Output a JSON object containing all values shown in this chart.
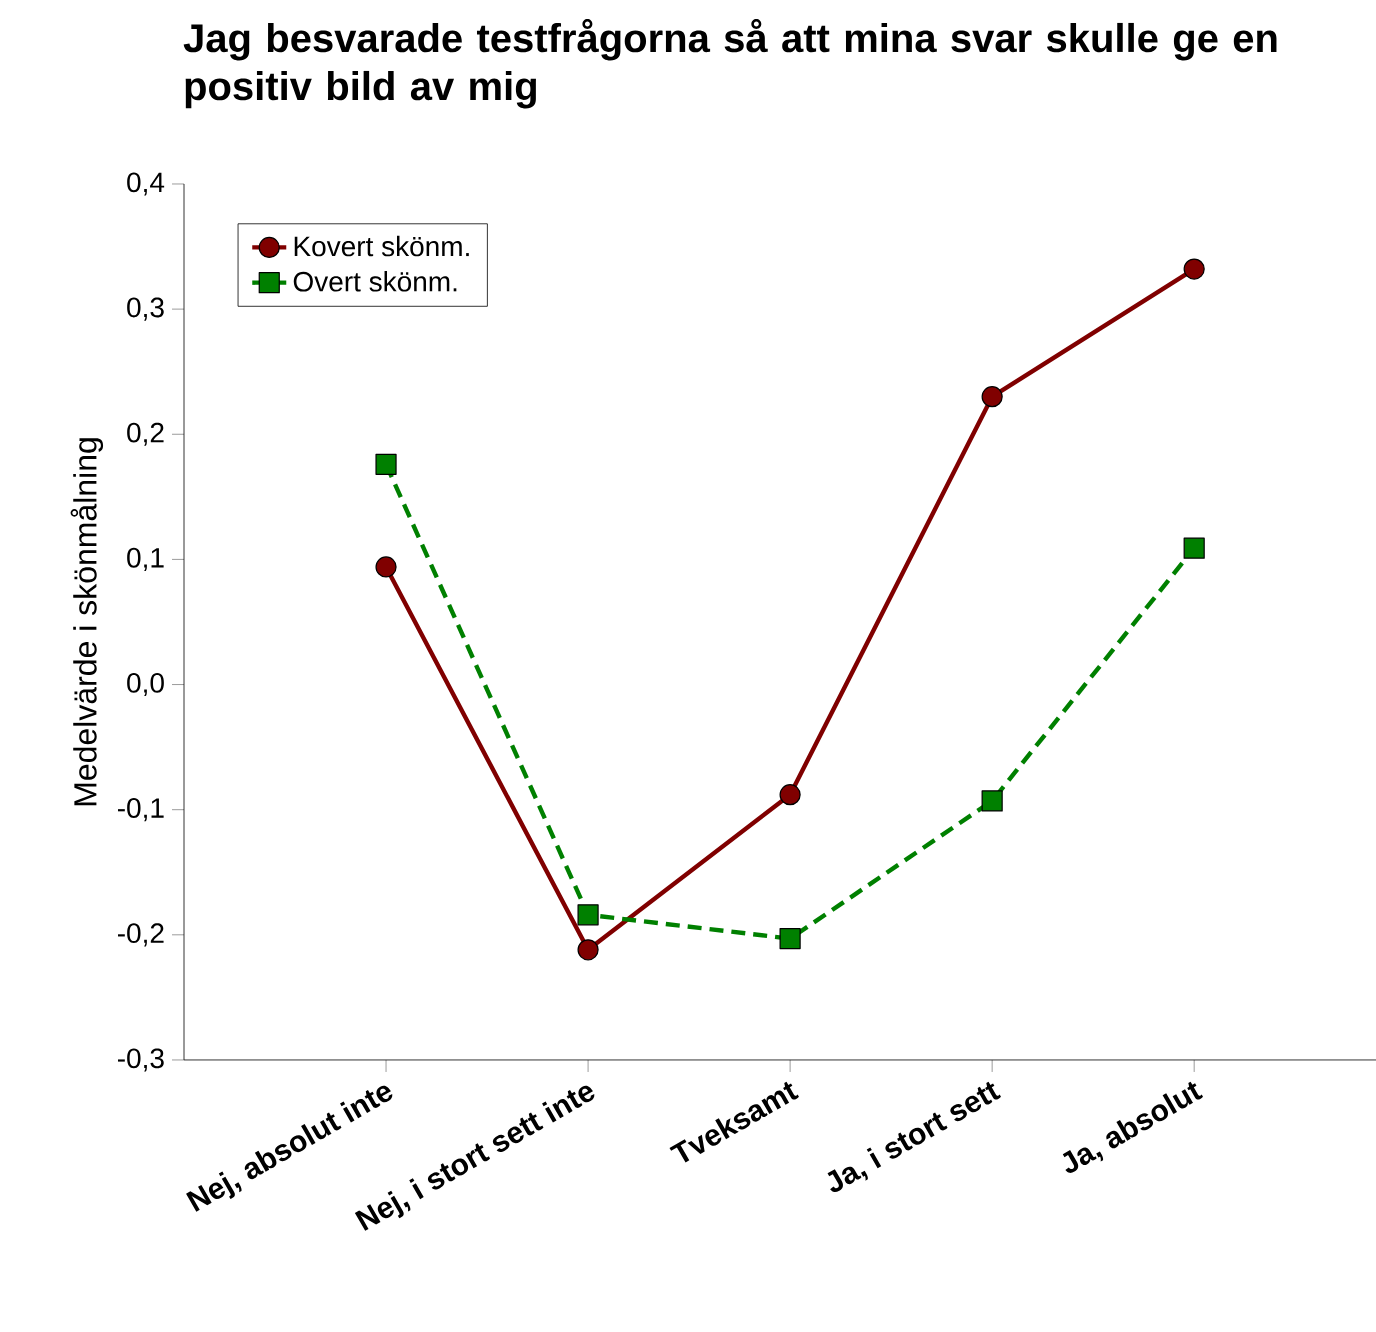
{
  "chart_data": {
    "type": "line",
    "title": "Jag besvarade testfrågorna så att mina svar skulle ge en positiv bild av mig",
    "ylabel": "Medelvärde i skönmålning",
    "categories": [
      "Nej, absolut inte",
      "Nej, i stort sett inte",
      "Tveksamt",
      "Ja, i stort sett",
      "Ja, absolut"
    ],
    "series": [
      {
        "name": "Kovert skönm.",
        "color": "#800000",
        "values": [
          0.094,
          -0.212,
          -0.088,
          0.23,
          0.332
        ],
        "marker": "circle",
        "line_style": "solid"
      },
      {
        "name": "Overt skönm.",
        "color": "#008000",
        "values": [
          0.176,
          -0.184,
          -0.203,
          -0.093,
          0.109
        ],
        "marker": "square",
        "line_style": "dashed"
      }
    ],
    "ylim": [
      -0.3,
      0.4
    ],
    "yticks": [
      {
        "value": -0.3,
        "label": "-0,3"
      },
      {
        "value": -0.2,
        "label": "-0,2"
      },
      {
        "value": -0.1,
        "label": "-0,1"
      },
      {
        "value": 0.0,
        "label": "0,0"
      },
      {
        "value": 0.1,
        "label": "0,1"
      },
      {
        "value": 0.2,
        "label": "0,2"
      },
      {
        "value": 0.3,
        "label": "0,3"
      },
      {
        "value": 0.4,
        "label": "0,4"
      }
    ],
    "legend": "top left",
    "grid": false
  }
}
